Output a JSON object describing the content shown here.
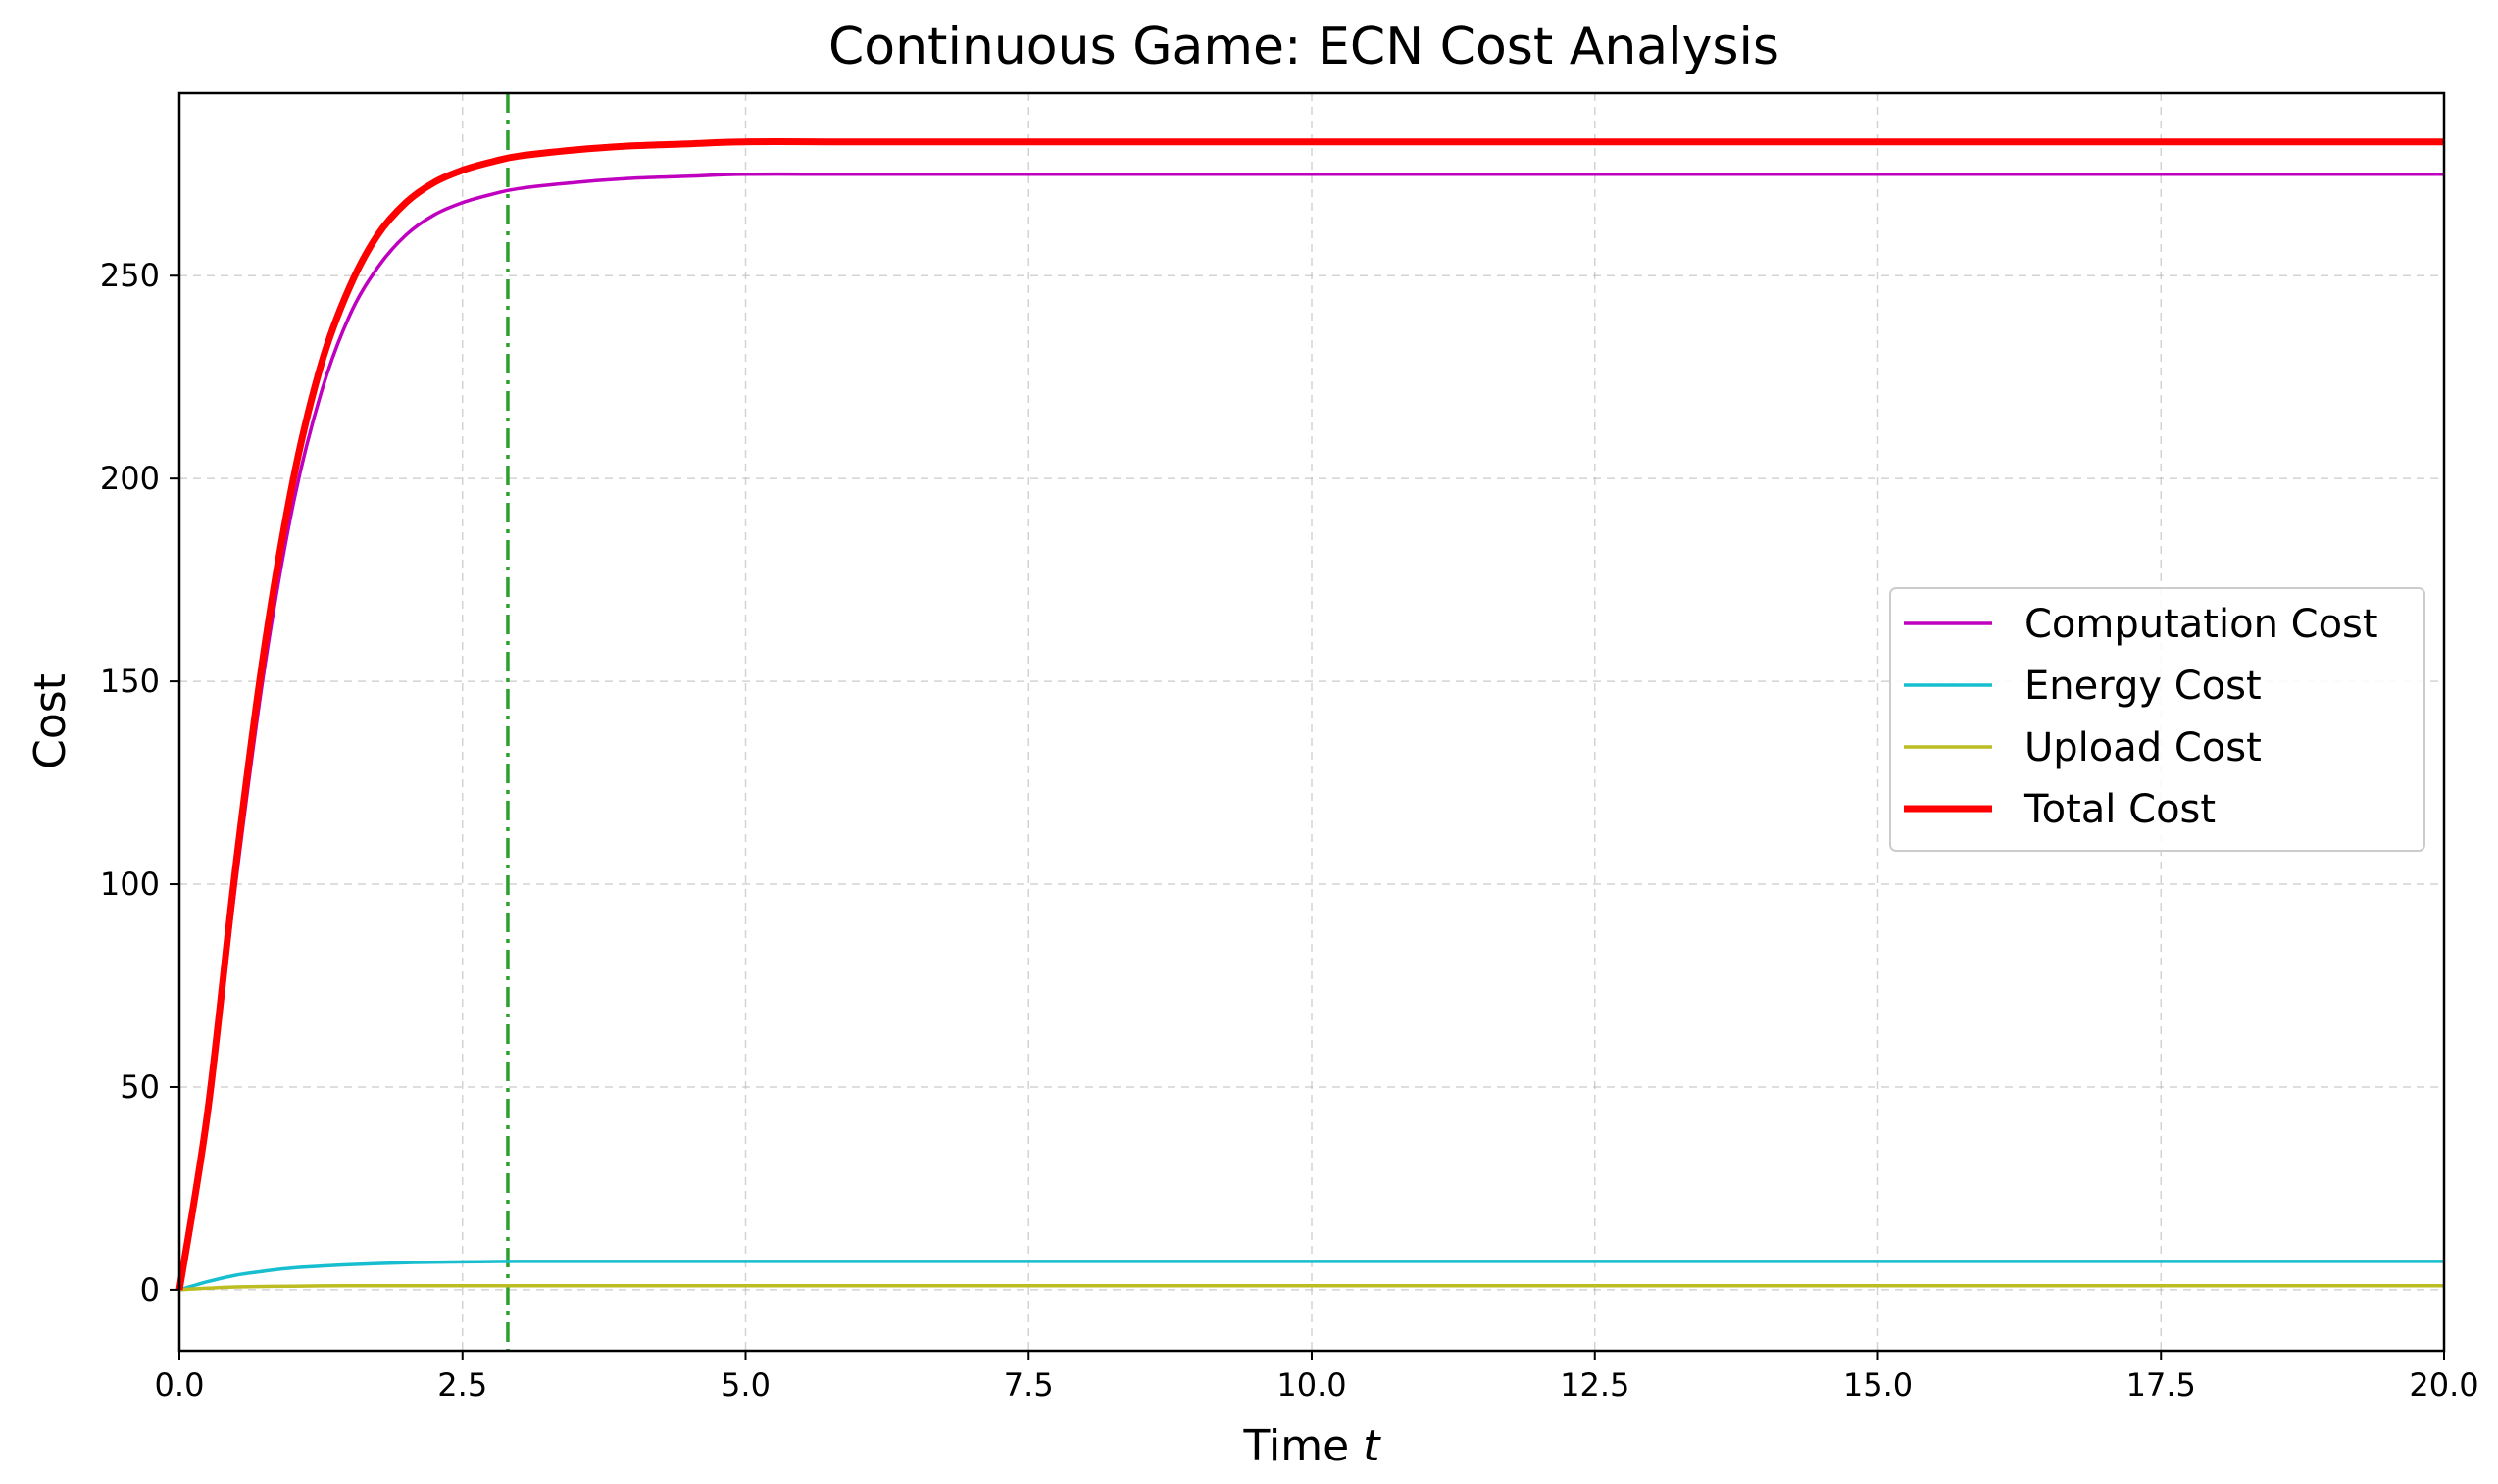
{
  "chart_data": {
    "type": "line",
    "title": "Continuous Game: ECN Cost Analysis",
    "xlabel": "Time",
    "xlabel_var": "t",
    "ylabel": "Cost",
    "xlim": [
      0,
      20
    ],
    "ylim": [
      -15,
      295
    ],
    "xticks": [
      0.0,
      2.5,
      5.0,
      7.5,
      10.0,
      12.5,
      15.0,
      17.5,
      20.0
    ],
    "xtick_labels": [
      "0.0",
      "2.5",
      "5.0",
      "7.5",
      "10.0",
      "12.5",
      "15.0",
      "17.5",
      "20.0"
    ],
    "yticks": [
      0,
      50,
      100,
      150,
      200,
      250
    ],
    "ytick_labels": [
      "0",
      "50",
      "100",
      "150",
      "200",
      "250"
    ],
    "grid": true,
    "legend_position": "center-right",
    "vline": {
      "x": 2.9,
      "color": "#2ca02c",
      "style": "dash-dot"
    },
    "series": [
      {
        "name": "Computation Cost",
        "color": "#bf00bf",
        "x": [
          0,
          0.25,
          0.5,
          0.75,
          1.0,
          1.25,
          1.5,
          1.75,
          2.0,
          2.25,
          2.5,
          2.75,
          3.0,
          3.5,
          4.0,
          4.5,
          5.0,
          6.0,
          8.0,
          10.0,
          12.5,
          15.0,
          17.5,
          20.0
        ],
        "y": [
          0,
          42,
          101,
          153,
          193,
          221,
          240,
          252,
          260,
          265,
          268,
          270,
          271.5,
          273,
          274,
          274.5,
          275,
          275,
          275,
          275,
          275,
          275,
          275,
          275
        ]
      },
      {
        "name": "Energy Cost",
        "color": "#17becf",
        "x": [
          0,
          0.25,
          0.5,
          0.75,
          1.0,
          1.5,
          2.0,
          2.5,
          3.0,
          4.0,
          5.0,
          10.0,
          15.0,
          20.0
        ],
        "y": [
          0,
          2.0,
          3.6,
          4.6,
          5.4,
          6.2,
          6.7,
          6.9,
          7.0,
          7.0,
          7.0,
          7.0,
          7.0,
          7.0
        ]
      },
      {
        "name": "Upload Cost",
        "color": "#bcbd22",
        "x": [
          0,
          0.25,
          0.5,
          1.0,
          1.5,
          2.0,
          3.0,
          5.0,
          10.0,
          15.0,
          20.0
        ],
        "y": [
          0,
          0.4,
          0.7,
          0.9,
          1.0,
          1.0,
          1.0,
          1.0,
          1.0,
          1.0,
          1.0
        ]
      },
      {
        "name": "Total Cost",
        "color": "#ff0000",
        "x": [
          0,
          0.25,
          0.5,
          0.75,
          1.0,
          1.25,
          1.5,
          1.75,
          2.0,
          2.25,
          2.5,
          2.75,
          3.0,
          3.5,
          4.0,
          4.5,
          5.0,
          6.0,
          8.0,
          10.0,
          12.5,
          15.0,
          17.5,
          20.0
        ],
        "y": [
          0,
          44,
          105,
          158,
          199,
          228,
          247,
          260,
          268,
          273,
          276,
          278,
          279.5,
          281,
          282,
          282.5,
          283,
          283,
          283,
          283,
          283,
          283,
          283,
          283
        ]
      }
    ]
  }
}
